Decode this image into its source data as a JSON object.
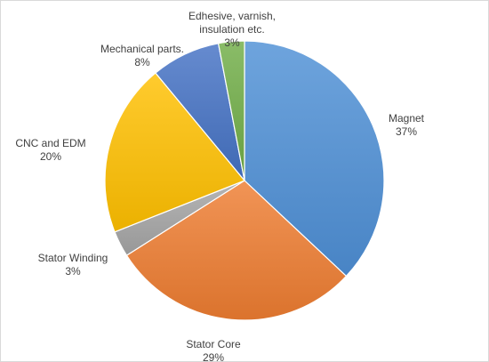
{
  "chart_data": {
    "type": "pie",
    "title": "",
    "legend": "none",
    "slices": [
      {
        "label": "Magnet",
        "label_lines": [
          "Magnet"
        ],
        "value": 37,
        "value_label": "37%",
        "color": "#4e90d6"
      },
      {
        "label": "Stator Core",
        "label_lines": [
          "Stator Core"
        ],
        "value": 29,
        "value_label": "29%",
        "color": "#ee7d31"
      },
      {
        "label": "Stator Winding",
        "label_lines": [
          "Stator Winding"
        ],
        "value": 3,
        "value_label": "3%",
        "color": "#a5a5a5"
      },
      {
        "label": "CNC and EDM",
        "label_lines": [
          "CNC and EDM"
        ],
        "value": 20,
        "value_label": "20%",
        "color": "#ffc000"
      },
      {
        "label": "Mechanical parts.",
        "label_lines": [
          "Mechanical parts."
        ],
        "value": 8,
        "value_label": "8%",
        "color": "#4472c4"
      },
      {
        "label": "Edhesive, varnish, insulation etc.",
        "label_lines": [
          "Edhesive, varnish,",
          "insulation etc."
        ],
        "value": 3,
        "value_label": "3%",
        "color": "#70ad47"
      }
    ]
  }
}
